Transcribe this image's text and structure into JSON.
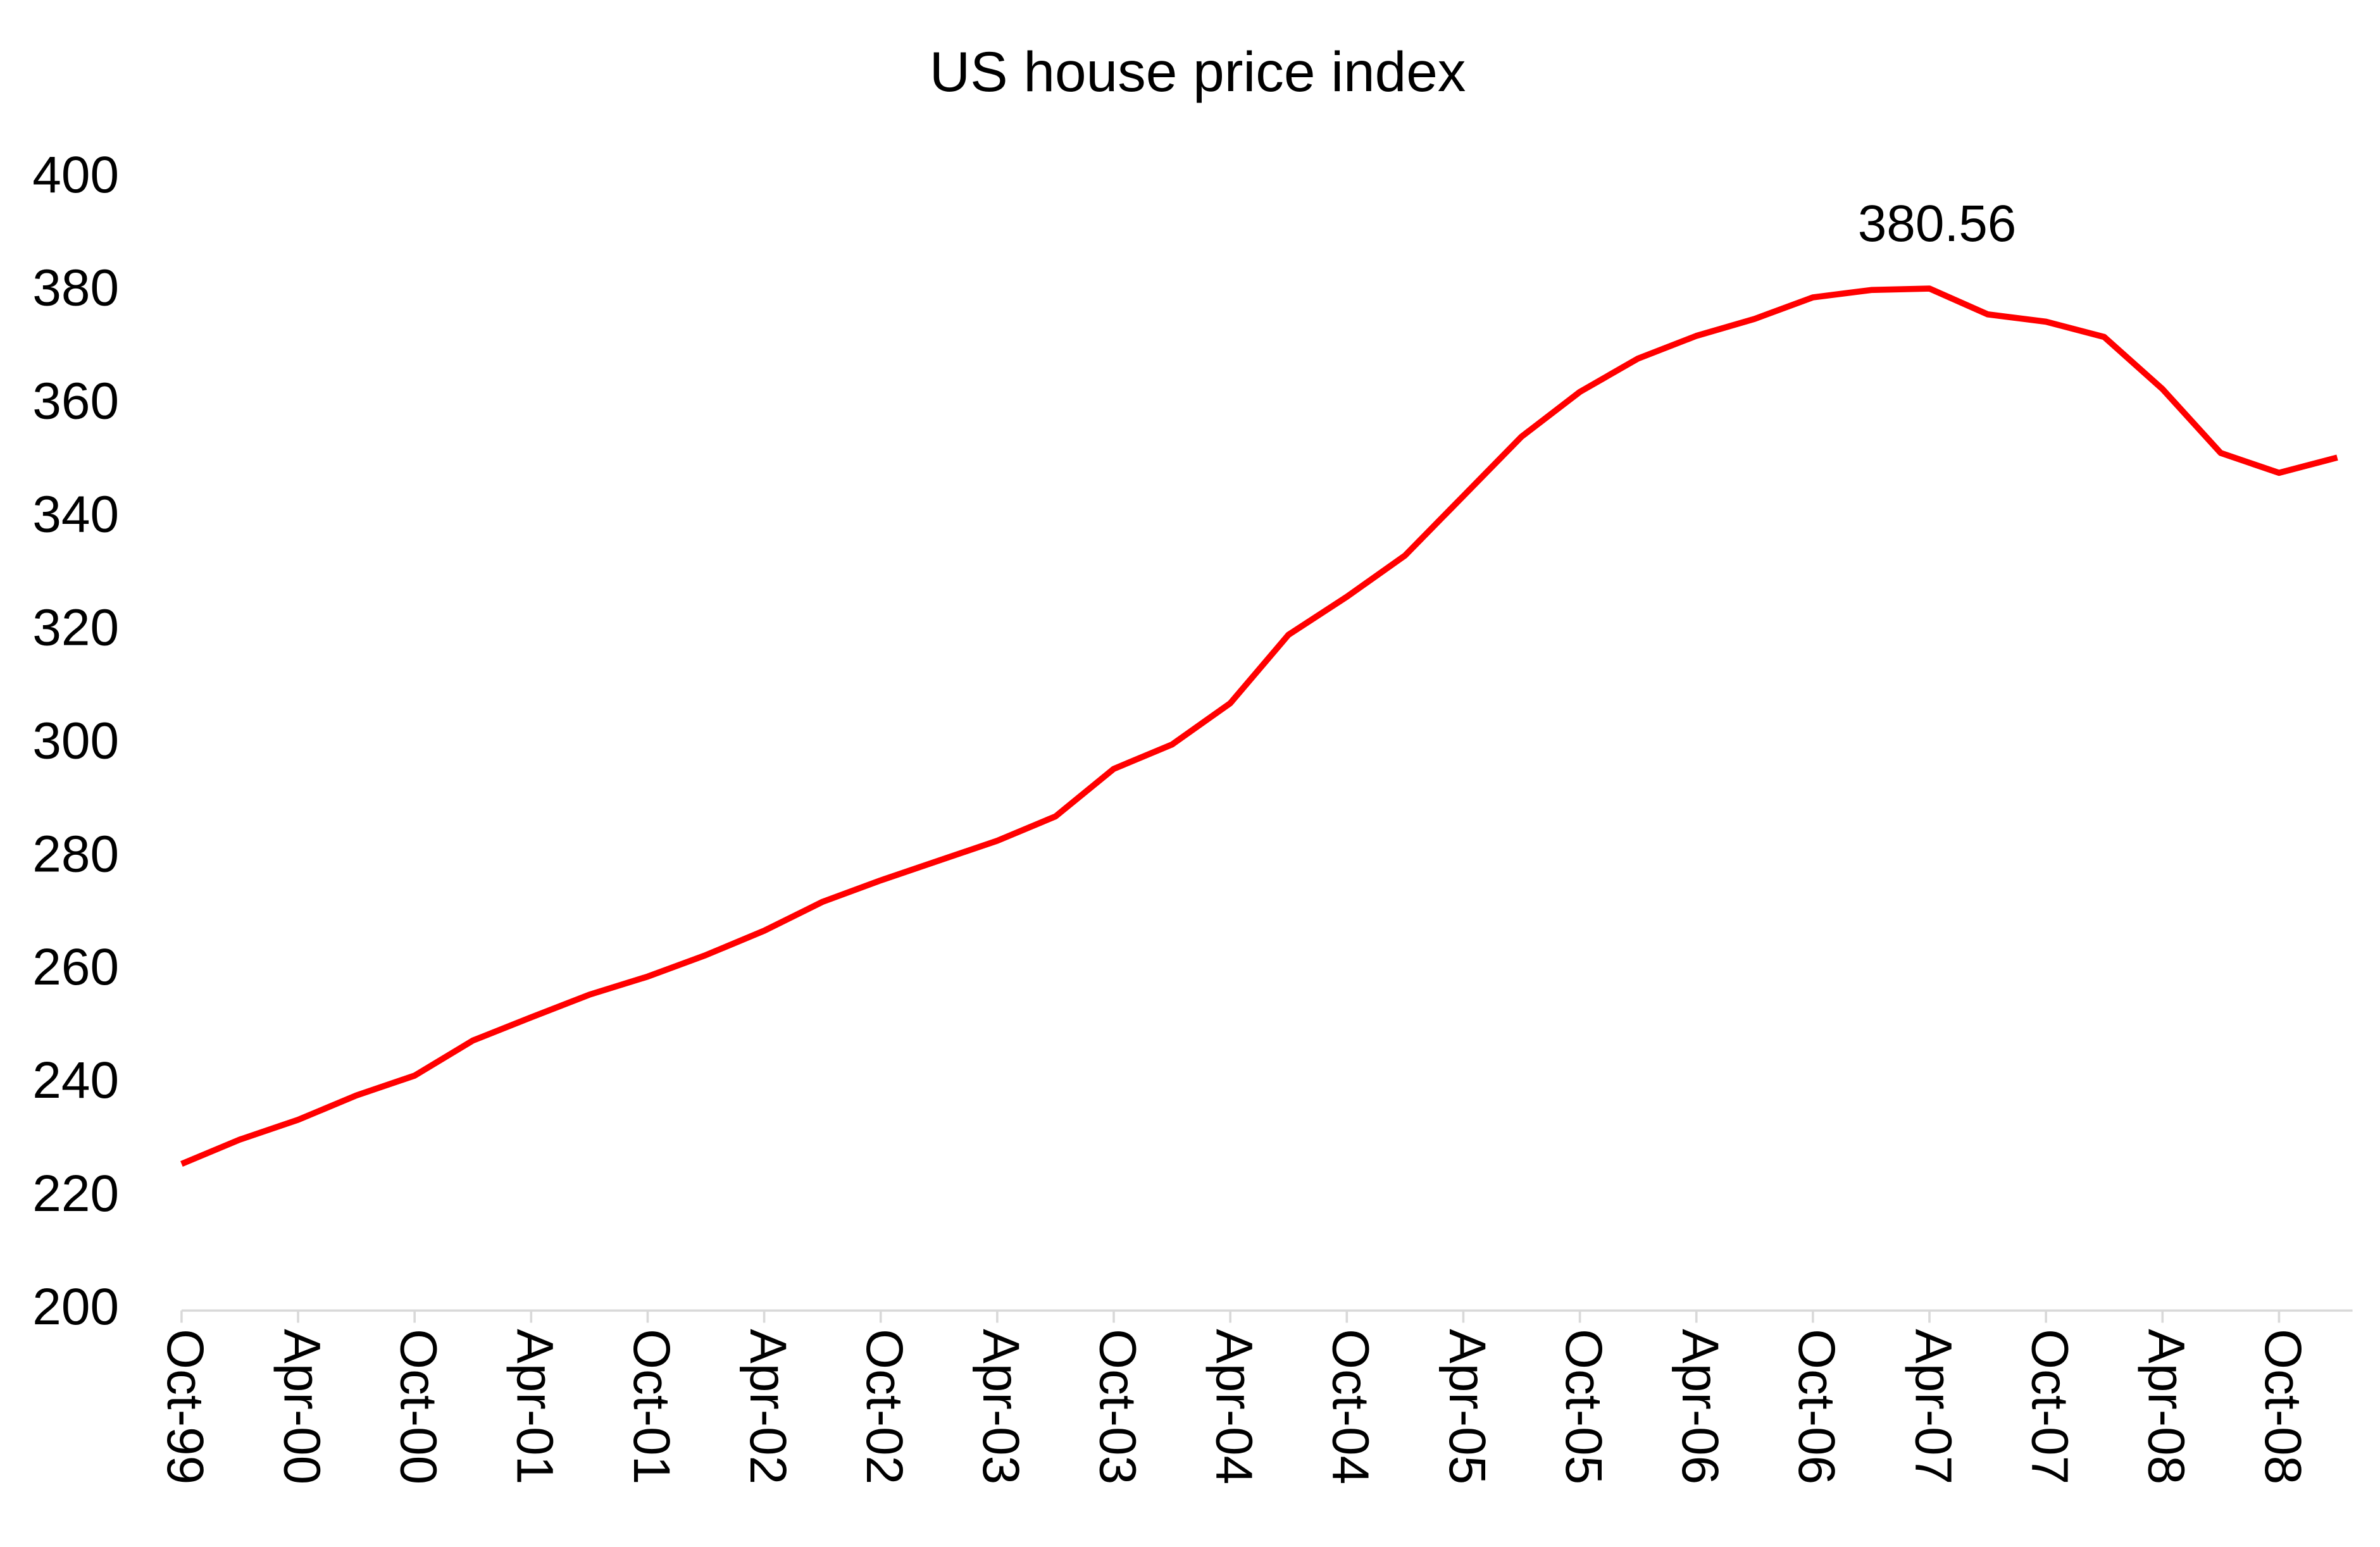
{
  "chart_data": {
    "type": "line",
    "title": "US house price index",
    "categories": [
      "Oct-99",
      null,
      "Apr-00",
      null,
      "Oct-00",
      null,
      "Apr-01",
      null,
      "Oct-01",
      null,
      "Apr-02",
      null,
      "Oct-02",
      null,
      "Apr-03",
      null,
      "Oct-03",
      null,
      "Apr-04",
      null,
      "Oct-04",
      null,
      "Apr-05",
      null,
      "Oct-05",
      null,
      "Apr-06",
      null,
      "Oct-06",
      null,
      "Apr-07",
      null,
      "Oct-07",
      null,
      "Apr-08",
      null,
      "Oct-08",
      null
    ],
    "values": [
      225.9,
      230.2,
      233.7,
      238,
      241.5,
      247.7,
      251.8,
      255.8,
      259,
      262.8,
      267.1,
      272.2,
      276,
      279.5,
      283,
      287.3,
      295.7,
      300,
      307.3,
      319.4,
      326.1,
      333.4,
      343.9,
      354.4,
      362.3,
      368.2,
      372.2,
      375.2,
      379,
      380.3,
      380.56,
      376,
      374.7,
      372,
      362.8,
      351.5,
      348,
      350.7
    ],
    "value_labels": [
      null,
      null,
      null,
      null,
      null,
      null,
      null,
      null,
      null,
      null,
      null,
      null,
      null,
      null,
      null,
      null,
      null,
      null,
      null,
      null,
      null,
      null,
      null,
      null,
      null,
      null,
      null,
      null,
      null,
      null,
      "380.56",
      null,
      null,
      null,
      null,
      null,
      null,
      null
    ],
    "color": "#ff0000",
    "ylim": [
      200,
      400
    ],
    "yticks": [
      200,
      220,
      240,
      260,
      280,
      300,
      320,
      340,
      360,
      380,
      400
    ],
    "grid": false
  }
}
